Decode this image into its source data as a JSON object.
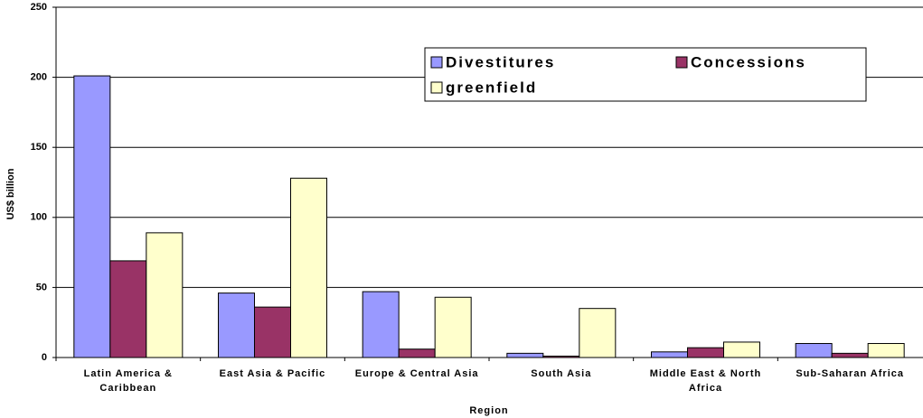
{
  "chart_data": {
    "type": "bar",
    "categories": [
      "Latin America & Caribbean",
      "East Asia & Pacific",
      "Europe & Central Asia",
      "South Asia",
      "Middle East & North Africa",
      "Sub-Saharan Africa"
    ],
    "series": [
      {
        "name": "Divestitures",
        "color": "#9999ff",
        "values": [
          201,
          46,
          47,
          3,
          4,
          10
        ]
      },
      {
        "name": "Concessions",
        "color": "#993366",
        "values": [
          69,
          36,
          6,
          1,
          7,
          3
        ]
      },
      {
        "name": "greenfield",
        "color": "#ffffcc",
        "values": [
          89,
          128,
          43,
          35,
          11,
          10
        ]
      }
    ],
    "xlabel": "Region",
    "ylabel": "US$ billion",
    "ylim": [
      0,
      250
    ],
    "yticks": [
      0,
      50,
      100,
      150,
      200,
      250
    ],
    "grid": true
  }
}
